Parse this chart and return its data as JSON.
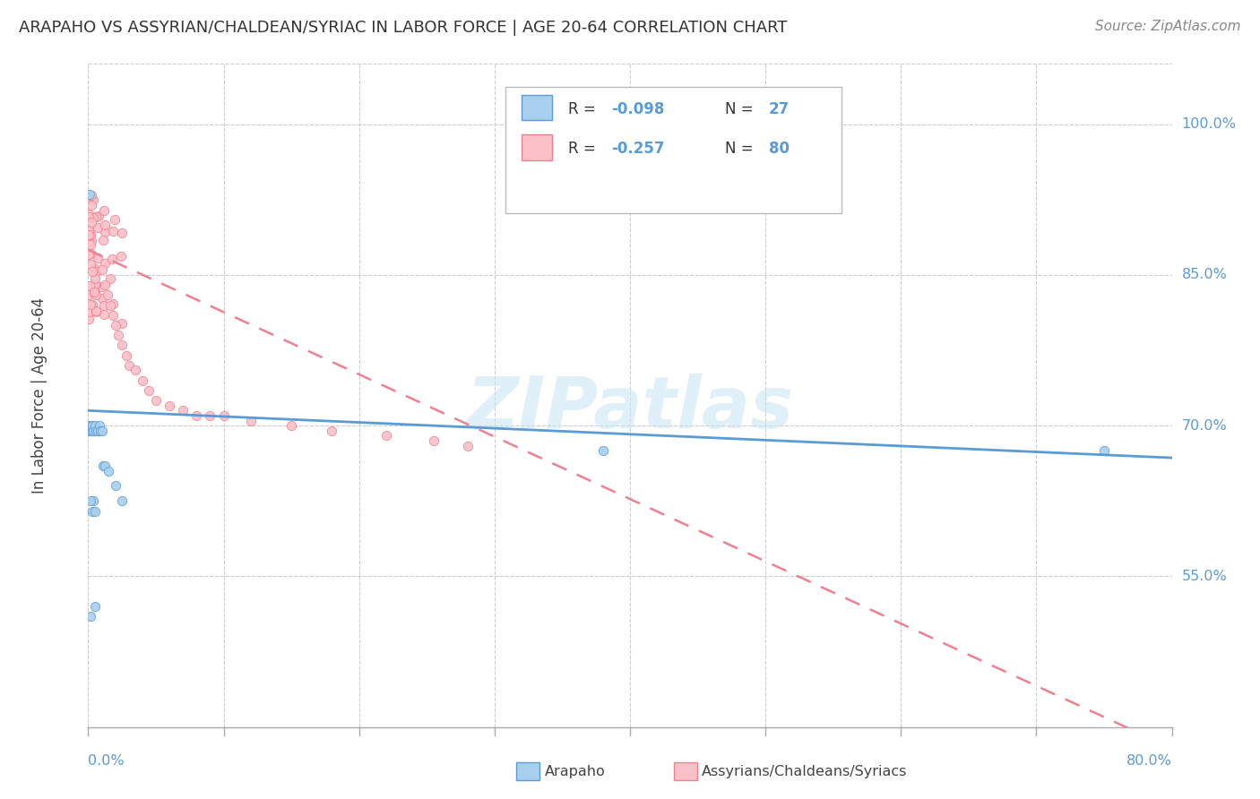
{
  "title": "ARAPAHO VS ASSYRIAN/CHALDEAN/SYRIAC IN LABOR FORCE | AGE 20-64 CORRELATION CHART",
  "source": "Source: ZipAtlas.com",
  "ylabel": "In Labor Force | Age 20-64",
  "ytick_labels": [
    "55.0%",
    "70.0%",
    "85.0%",
    "100.0%"
  ],
  "ytick_values": [
    0.55,
    0.7,
    0.85,
    1.0
  ],
  "xlim": [
    0.0,
    0.8
  ],
  "ylim": [
    0.4,
    1.06
  ],
  "color_arapaho_fill": "#A8D0EE",
  "color_arapaho_edge": "#5B9BD5",
  "color_assyrian_fill": "#F9C0C8",
  "color_assyrian_edge": "#F08090",
  "color_arapaho_line": "#5B9BD5",
  "color_assyrian_line": "#F08090",
  "background_color": "#FFFFFF",
  "grid_color": "#CCCCCC",
  "watermark": "ZIPatlas",
  "text_blue": "#5B9BD5",
  "text_dark": "#444444",
  "legend_r1": "R = ",
  "legend_v1": "-0.098",
  "legend_n1": "N = ",
  "legend_nv1": "27",
  "legend_r2": "R = ",
  "legend_v2": "-0.257",
  "legend_n2": "N = ",
  "legend_nv2": "80"
}
